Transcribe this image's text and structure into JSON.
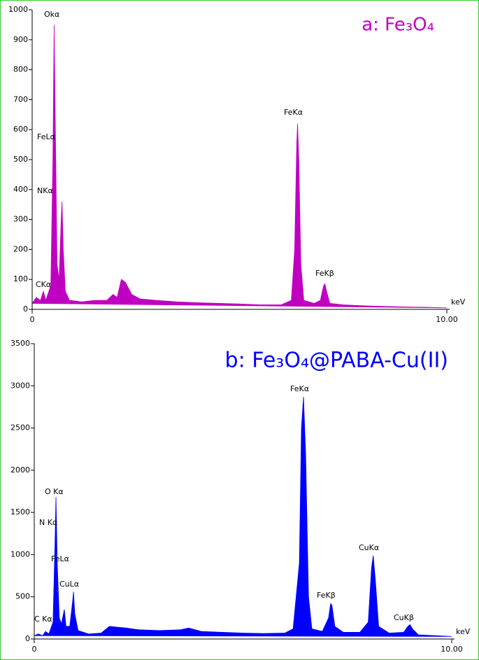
{
  "chart_data": [
    {
      "type": "area",
      "title": "a: Fe₃O₄",
      "color": "#c000c0",
      "x_label": "keV",
      "xlim": [
        0,
        10
      ],
      "ylim": [
        0,
        1000
      ],
      "xticks": [
        0,
        {
          "value": 10,
          "label": "10.00"
        }
      ],
      "yticks": [
        0,
        100,
        200,
        300,
        400,
        500,
        600,
        700,
        800,
        900,
        1000
      ],
      "annotations": [
        "Okα",
        "FeLα",
        "NKα",
        "CKα",
        "FeKα",
        "FeKβ"
      ],
      "x": [
        0,
        0.1,
        0.2,
        0.27,
        0.33,
        0.45,
        0.5,
        0.53,
        0.56,
        0.6,
        0.65,
        0.7,
        0.72,
        0.75,
        0.8,
        0.9,
        1.2,
        1.5,
        1.8,
        1.95,
        2.05,
        2.15,
        2.25,
        2.4,
        2.6,
        3.0,
        3.5,
        4.0,
        4.5,
        5.0,
        5.5,
        6.0,
        6.25,
        6.33,
        6.38,
        6.4,
        6.43,
        6.48,
        6.55,
        6.8,
        6.95,
        7.03,
        7.06,
        7.1,
        7.18,
        7.5,
        8.0,
        8.5,
        9.0,
        9.5,
        10
      ],
      "values": [
        20,
        40,
        30,
        60,
        30,
        80,
        500,
        950,
        600,
        150,
        100,
        300,
        360,
        200,
        60,
        30,
        25,
        30,
        30,
        50,
        40,
        100,
        90,
        50,
        35,
        30,
        25,
        22,
        20,
        18,
        15,
        15,
        30,
        200,
        550,
        620,
        500,
        150,
        30,
        20,
        30,
        80,
        85,
        60,
        20,
        15,
        12,
        10,
        8,
        7,
        5
      ]
    },
    {
      "type": "area",
      "title": "b: Fe₃O₄@PABA-Cu(II)",
      "color": "#0000ff",
      "x_label": "keV",
      "xlim": [
        0,
        10
      ],
      "ylim": [
        0,
        3500
      ],
      "xticks": [
        0,
        {
          "value": 10,
          "label": "10.00"
        }
      ],
      "yticks": [
        0,
        500,
        1000,
        1500,
        2000,
        2500,
        3000,
        3500
      ],
      "annotations": [
        "O Kα",
        "N Kα",
        "FeLα",
        "CuLα",
        "C Kα",
        "FeKα",
        "FeKβ",
        "CuKα",
        "CuKβ"
      ],
      "x": [
        0,
        0.1,
        0.2,
        0.27,
        0.35,
        0.45,
        0.5,
        0.52,
        0.55,
        0.6,
        0.65,
        0.7,
        0.72,
        0.76,
        0.85,
        0.92,
        0.94,
        0.97,
        1.05,
        1.3,
        1.6,
        1.8,
        2.0,
        2.2,
        2.5,
        3.0,
        3.5,
        3.7,
        4.0,
        4.5,
        5.0,
        5.5,
        6.0,
        6.2,
        6.35,
        6.4,
        6.45,
        6.5,
        6.57,
        6.65,
        6.9,
        7.05,
        7.1,
        7.13,
        7.2,
        7.4,
        7.8,
        8.0,
        8.08,
        8.12,
        8.17,
        8.25,
        8.5,
        8.85,
        8.95,
        9.0,
        9.06,
        9.2,
        9.6,
        10
      ],
      "values": [
        40,
        60,
        40,
        90,
        60,
        200,
        1200,
        1680,
        900,
        250,
        180,
        300,
        350,
        150,
        150,
        450,
        560,
        300,
        100,
        60,
        70,
        150,
        140,
        130,
        110,
        100,
        110,
        130,
        90,
        80,
        70,
        65,
        70,
        120,
        900,
        2500,
        2870,
        2200,
        500,
        120,
        90,
        250,
        420,
        400,
        150,
        80,
        80,
        200,
        850,
        990,
        700,
        150,
        70,
        80,
        150,
        170,
        120,
        50,
        40,
        30
      ]
    }
  ]
}
